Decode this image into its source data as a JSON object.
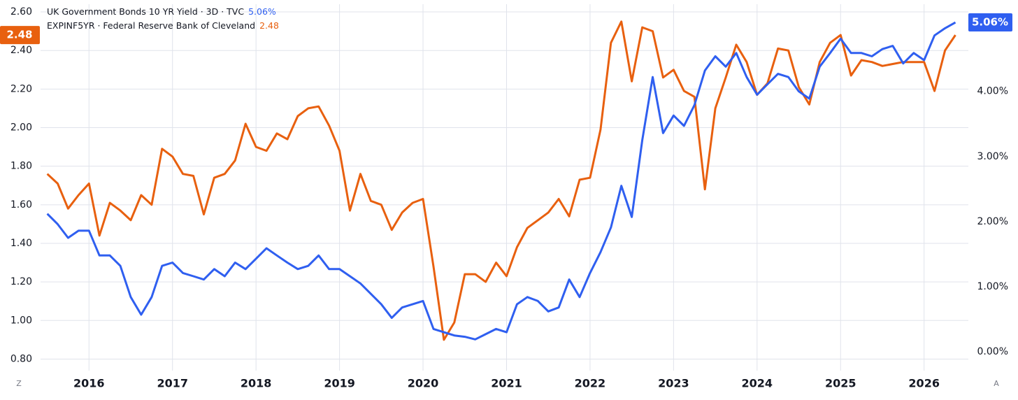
{
  "chart_data": {
    "type": "line",
    "x": [
      2015.5,
      2015.625,
      2015.75,
      2015.875,
      2016,
      2016.125,
      2016.25,
      2016.375,
      2016.5,
      2016.625,
      2016.75,
      2016.875,
      2017,
      2017.125,
      2017.25,
      2017.375,
      2017.5,
      2017.625,
      2017.75,
      2017.875,
      2018,
      2018.125,
      2018.25,
      2018.375,
      2018.5,
      2018.625,
      2018.75,
      2018.875,
      2019,
      2019.125,
      2019.25,
      2019.375,
      2019.5,
      2019.625,
      2019.75,
      2019.875,
      2020,
      2020.125,
      2020.25,
      2020.375,
      2020.5,
      2020.625,
      2020.75,
      2020.875,
      2021,
      2021.125,
      2021.25,
      2021.375,
      2021.5,
      2021.625,
      2021.75,
      2021.875,
      2022,
      2022.125,
      2022.25,
      2022.375,
      2022.5,
      2022.625,
      2022.75,
      2022.875,
      2023,
      2023.125,
      2023.25,
      2023.375,
      2023.5,
      2023.625,
      2023.75,
      2023.875,
      2024,
      2024.125,
      2024.25,
      2024.375,
      2024.5,
      2024.625,
      2024.75,
      2024.875,
      2025,
      2025.125,
      2025.25,
      2025.375,
      2025.5,
      2025.625,
      2025.75,
      2025.875,
      2026,
      2026.125,
      2026.25,
      2026.375
    ],
    "xlim": [
      2015.42,
      2026.53
    ],
    "xticks": [
      2016,
      2017,
      2018,
      2019,
      2020,
      2021,
      2022,
      2023,
      2024,
      2025,
      2026
    ],
    "ylim": [
      0.74,
      2.64
    ],
    "yticks": [
      {
        "value": 0.8,
        "label": "0.80"
      },
      {
        "value": 1.0,
        "label": "1.00"
      },
      {
        "value": 1.2,
        "label": "1.20"
      },
      {
        "value": 1.4,
        "label": "1.40"
      },
      {
        "value": 1.6,
        "label": "1.60"
      },
      {
        "value": 1.8,
        "label": "1.80"
      },
      {
        "value": 2.0,
        "label": "2.00"
      },
      {
        "value": 2.2,
        "label": "2.20"
      },
      {
        "value": 2.4,
        "label": "2.40"
      },
      {
        "value": 2.6,
        "label": "2.60"
      }
    ],
    "y2lim": [
      -0.29,
      5.34
    ],
    "y2ticks": [
      {
        "value": 0,
        "label": "0.00%"
      },
      {
        "value": 1,
        "label": "1.00%"
      },
      {
        "value": 2,
        "label": "2.00%"
      },
      {
        "value": 3,
        "label": "3.00%"
      },
      {
        "value": 4,
        "label": "4.00%"
      }
    ],
    "grid": true,
    "series": [
      {
        "name": "UK Government Bonds 10 YR Yield · 3D · TVC",
        "color": "#2f5ff0",
        "axis": "y2",
        "current_label": "5.06%",
        "values": [
          2.12,
          1.96,
          1.75,
          1.86,
          1.86,
          1.48,
          1.48,
          1.32,
          0.84,
          0.57,
          0.84,
          1.32,
          1.37,
          1.21,
          1.16,
          1.11,
          1.27,
          1.16,
          1.37,
          1.27,
          1.43,
          1.59,
          1.48,
          1.37,
          1.27,
          1.32,
          1.48,
          1.27,
          1.27,
          1.16,
          1.05,
          0.89,
          0.73,
          0.52,
          0.68,
          0.73,
          0.78,
          0.35,
          0.3,
          0.25,
          0.23,
          0.19,
          0.27,
          0.35,
          0.3,
          0.73,
          0.84,
          0.78,
          0.62,
          0.68,
          1.11,
          0.84,
          1.21,
          1.53,
          1.91,
          2.55,
          2.07,
          3.25,
          4.22,
          3.36,
          3.63,
          3.47,
          3.79,
          4.32,
          4.54,
          4.38,
          4.59,
          4.22,
          3.95,
          4.11,
          4.27,
          4.22,
          4.0,
          3.89,
          4.38,
          4.59,
          4.81,
          4.59,
          4.59,
          4.54,
          4.65,
          4.7,
          4.43,
          4.59,
          4.48,
          4.86,
          4.97,
          5.06
        ]
      },
      {
        "name": "EXPINF5YR · Federal Reserve Bank of Cleveland",
        "color": "#e8600f",
        "values": [
          1.76,
          1.71,
          1.58,
          1.65,
          1.71,
          1.44,
          1.61,
          1.57,
          1.52,
          1.65,
          1.6,
          1.89,
          1.85,
          1.76,
          1.75,
          1.55,
          1.74,
          1.76,
          1.83,
          2.02,
          1.9,
          1.88,
          1.97,
          1.94,
          2.06,
          2.1,
          2.11,
          2.01,
          1.88,
          1.57,
          1.76,
          1.62,
          1.6,
          1.47,
          1.56,
          1.61,
          1.63,
          1.28,
          0.9,
          0.99,
          1.24,
          1.24,
          1.2,
          1.3,
          1.23,
          1.38,
          1.48,
          1.52,
          1.56,
          1.63,
          1.54,
          1.73,
          1.74,
          1.99,
          2.44,
          2.55,
          2.24,
          2.52,
          2.5,
          2.26,
          2.3,
          2.19,
          2.16,
          1.68,
          2.1,
          2.26,
          2.43,
          2.34,
          2.17,
          2.23,
          2.41,
          2.4,
          2.21,
          2.12,
          2.34,
          2.44,
          2.48,
          2.27,
          2.35,
          2.34,
          2.32,
          2.33,
          2.34,
          2.34,
          2.34,
          2.19,
          2.4,
          2.48
        ]
      }
    ],
    "controls": {
      "left": "Z",
      "right": "A"
    }
  }
}
